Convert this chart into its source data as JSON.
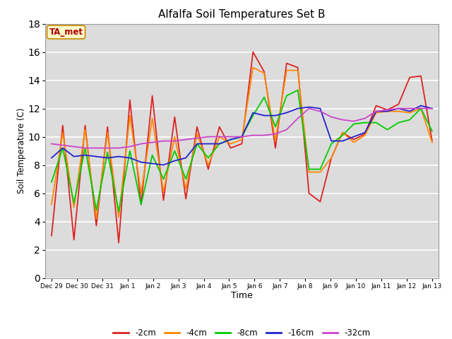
{
  "title": "Alfalfa Soil Temperatures Set B",
  "xlabel": "Time",
  "ylabel": "Soil Temperature (C)",
  "ylim": [
    0,
    18
  ],
  "yticks": [
    0,
    2,
    4,
    6,
    8,
    10,
    12,
    14,
    16,
    18
  ],
  "bg_color": "#dcdcdc",
  "annotation_text": "TA_met",
  "annotation_bg": "#ffffcc",
  "annotation_border": "#cc8800",
  "annotation_text_color": "#aa0000",
  "series_colors": {
    "-2cm": "#dd2222",
    "-4cm": "#ff8800",
    "-8cm": "#00cc00",
    "-16cm": "#2222cc",
    "-32cm": "#cc44cc"
  },
  "x_tick_labels": [
    "Dec 29",
    "Dec 30",
    "Dec 31",
    "Jan 1",
    "Jan 2",
    "Jan 3",
    "Jan 4",
    "Jan 5",
    "Jan 6",
    "Jan 7",
    "Jan 8",
    "Jan 9",
    "Jan 10",
    "Jan 11",
    "Jan 12",
    "Jan 13"
  ],
  "x_tick_positions": [
    0,
    2,
    4,
    6,
    8,
    10,
    12,
    14,
    16,
    18,
    20,
    22,
    24,
    26,
    28,
    30
  ],
  "data": {
    "-2cm": [
      3.0,
      10.8,
      2.7,
      10.8,
      3.7,
      10.7,
      2.5,
      12.6,
      5.2,
      12.9,
      5.5,
      11.4,
      5.6,
      10.7,
      7.7,
      10.7,
      9.2,
      9.5,
      16.0,
      14.6,
      9.2,
      15.2,
      14.9,
      6.0,
      5.4,
      8.5,
      10.3,
      9.8,
      10.2,
      12.2,
      11.9,
      12.3,
      14.2,
      14.3,
      9.7
    ],
    "-4cm": [
      5.2,
      10.3,
      5.0,
      10.5,
      4.2,
      10.3,
      4.3,
      11.5,
      6.0,
      11.3,
      6.1,
      10.0,
      6.3,
      10.2,
      8.0,
      10.0,
      9.5,
      9.8,
      14.9,
      14.5,
      9.7,
      14.7,
      14.7,
      7.5,
      7.5,
      8.5,
      10.3,
      9.6,
      10.1,
      11.7,
      11.8,
      11.8,
      11.7,
      12.0,
      9.6
    ],
    "-8cm": [
      6.8,
      9.2,
      5.3,
      9.2,
      4.8,
      8.9,
      4.7,
      9.0,
      5.2,
      8.7,
      7.0,
      9.0,
      7.0,
      9.5,
      8.5,
      9.5,
      9.8,
      10.0,
      11.5,
      12.8,
      10.7,
      12.9,
      13.3,
      7.7,
      7.7,
      9.5,
      10.1,
      10.9,
      11.0,
      11.0,
      10.5,
      11.0,
      11.2,
      12.0,
      10.4
    ],
    "-16cm": [
      8.5,
      9.2,
      8.6,
      8.7,
      8.6,
      8.5,
      8.6,
      8.5,
      8.2,
      8.1,
      8.0,
      8.3,
      8.5,
      9.5,
      9.5,
      9.5,
      9.8,
      10.0,
      11.7,
      11.5,
      11.5,
      11.7,
      12.0,
      12.1,
      12.0,
      9.7,
      9.7,
      10.0,
      10.3,
      11.8,
      11.8,
      12.0,
      11.8,
      12.2,
      12.0
    ],
    "-32cm": [
      9.5,
      9.4,
      9.3,
      9.2,
      9.2,
      9.2,
      9.2,
      9.3,
      9.5,
      9.6,
      9.7,
      9.7,
      9.8,
      9.9,
      10.0,
      10.0,
      10.0,
      10.0,
      10.1,
      10.1,
      10.2,
      10.5,
      11.3,
      12.0,
      11.8,
      11.4,
      11.2,
      11.1,
      11.3,
      11.8,
      11.9,
      12.0,
      12.0,
      12.0,
      12.0
    ]
  }
}
